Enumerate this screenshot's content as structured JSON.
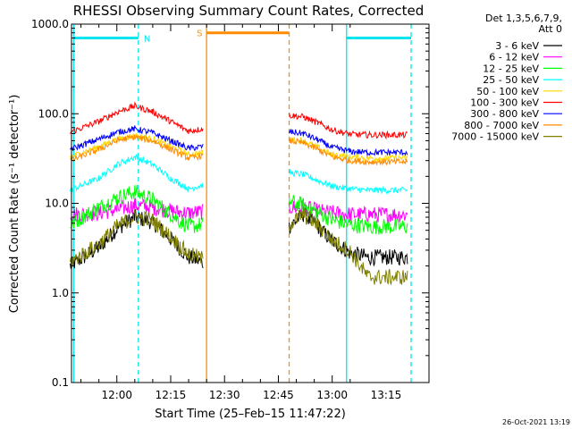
{
  "chart_data": {
    "type": "line",
    "title": "RHESSI Observing Summary Count Rates, Corrected",
    "ylabel": "Corrected Count Rate (s⁻¹ detector⁻¹)",
    "xlabel": "Start Time (25–Feb–15 11:47:22)",
    "x_start": "11:47:22",
    "xlim": [
      "11:47:22",
      "13:26:58"
    ],
    "ylim": [
      0.1,
      1000.0
    ],
    "yscale": "log",
    "x_ticks": [
      "12:00",
      "12:15",
      "12:30",
      "12:45",
      "13:00",
      "13:15"
    ],
    "y_ticks": [
      "0.1",
      "1.0",
      "10.0",
      "100.0",
      "1000.0"
    ],
    "legend_title": [
      "Det 1,3,5,6,7,9,",
      "Att 0"
    ],
    "legend_position": "right",
    "footer_date": "26-Oct-2021 13:19",
    "series": [
      {
        "name": "3 - 6 keV",
        "color": "#000000",
        "points": [
          [
            "11:47",
            2.0
          ],
          [
            "11:55",
            3.2
          ],
          [
            "12:00",
            5.2
          ],
          [
            "12:05",
            7.0
          ],
          [
            "12:10",
            6.2
          ],
          [
            "12:15",
            4.0
          ],
          [
            "12:20",
            2.5
          ],
          [
            "12:24",
            2.2
          ],
          [
            "12:48",
            5.5
          ],
          [
            "12:52",
            7.5
          ],
          [
            "12:56",
            5.5
          ],
          [
            "13:00",
            3.8
          ],
          [
            "13:05",
            2.8
          ],
          [
            "13:10",
            2.5
          ],
          [
            "13:15",
            2.5
          ],
          [
            "13:21",
            2.5
          ]
        ]
      },
      {
        "name": "6 - 12 keV",
        "color": "#ff00ff",
        "points": [
          [
            "11:47",
            7.5
          ],
          [
            "11:55",
            7.8
          ],
          [
            "12:00",
            8.5
          ],
          [
            "12:05",
            9.5
          ],
          [
            "12:10",
            9.0
          ],
          [
            "12:15",
            8.2
          ],
          [
            "12:20",
            7.8
          ],
          [
            "12:24",
            8.0
          ],
          [
            "12:48",
            9.0
          ],
          [
            "12:52",
            9.0
          ],
          [
            "12:56",
            8.2
          ],
          [
            "13:00",
            7.8
          ],
          [
            "13:05",
            7.5
          ],
          [
            "13:10",
            7.5
          ],
          [
            "13:15",
            7.5
          ],
          [
            "13:21",
            7.5
          ]
        ]
      },
      {
        "name": "12 - 25 keV",
        "color": "#00ff00",
        "points": [
          [
            "11:47",
            5.8
          ],
          [
            "11:55",
            9.0
          ],
          [
            "12:00",
            11.5
          ],
          [
            "12:05",
            13.5
          ],
          [
            "12:10",
            11.0
          ],
          [
            "12:15",
            7.5
          ],
          [
            "12:20",
            5.5
          ],
          [
            "12:24",
            5.8
          ],
          [
            "12:48",
            10.5
          ],
          [
            "12:52",
            9.5
          ],
          [
            "12:56",
            8.0
          ],
          [
            "13:00",
            6.5
          ],
          [
            "13:05",
            5.8
          ],
          [
            "13:10",
            5.5
          ],
          [
            "13:15",
            5.5
          ],
          [
            "13:21",
            5.5
          ]
        ]
      },
      {
        "name": "25 - 50 keV",
        "color": "#00ffff",
        "points": [
          [
            "11:47",
            14.0
          ],
          [
            "11:55",
            19.0
          ],
          [
            "12:00",
            27.0
          ],
          [
            "12:05",
            33.0
          ],
          [
            "12:10",
            27.0
          ],
          [
            "12:15",
            19.0
          ],
          [
            "12:20",
            14.5
          ],
          [
            "12:24",
            16.0
          ],
          [
            "12:48",
            22.0
          ],
          [
            "12:52",
            21.0
          ],
          [
            "12:56",
            18.0
          ],
          [
            "13:00",
            15.5
          ],
          [
            "13:05",
            14.5
          ],
          [
            "13:10",
            14.0
          ],
          [
            "13:15",
            14.0
          ],
          [
            "13:21",
            14.0
          ]
        ]
      },
      {
        "name": "50 - 100 keV",
        "color": "#ffd700",
        "points": [
          [
            "11:47",
            33.0
          ],
          [
            "11:55",
            43.0
          ],
          [
            "12:00",
            52.0
          ],
          [
            "12:05",
            57.0
          ],
          [
            "12:10",
            52.0
          ],
          [
            "12:15",
            43.0
          ],
          [
            "12:20",
            35.0
          ],
          [
            "12:24",
            37.0
          ],
          [
            "12:48",
            52.0
          ],
          [
            "12:52",
            50.0
          ],
          [
            "12:56",
            42.0
          ],
          [
            "13:00",
            35.0
          ],
          [
            "13:05",
            33.0
          ],
          [
            "13:10",
            32.0
          ],
          [
            "13:15",
            32.0
          ],
          [
            "13:21",
            32.0
          ]
        ]
      },
      {
        "name": "100 - 300 keV",
        "color": "#ff0000",
        "points": [
          [
            "11:47",
            62.0
          ],
          [
            "11:55",
            82.0
          ],
          [
            "12:00",
            104.0
          ],
          [
            "12:05",
            122.0
          ],
          [
            "12:10",
            105.0
          ],
          [
            "12:15",
            82.0
          ],
          [
            "12:20",
            64.0
          ],
          [
            "12:24",
            68.0
          ],
          [
            "12:48",
            96.0
          ],
          [
            "12:52",
            92.0
          ],
          [
            "12:56",
            79.0
          ],
          [
            "13:00",
            66.0
          ],
          [
            "13:05",
            59.0
          ],
          [
            "13:10",
            58.0
          ],
          [
            "13:15",
            58.0
          ],
          [
            "13:21",
            58.0
          ]
        ]
      },
      {
        "name": "300 - 800 keV",
        "color": "#0000ff",
        "points": [
          [
            "11:47",
            40.0
          ],
          [
            "11:55",
            52.0
          ],
          [
            "12:00",
            62.0
          ],
          [
            "12:05",
            68.0
          ],
          [
            "12:10",
            61.0
          ],
          [
            "12:15",
            50.0
          ],
          [
            "12:20",
            41.0
          ],
          [
            "12:24",
            43.0
          ],
          [
            "12:48",
            63.0
          ],
          [
            "12:52",
            60.0
          ],
          [
            "12:56",
            51.0
          ],
          [
            "13:00",
            42.0
          ],
          [
            "13:05",
            38.0
          ],
          [
            "13:10",
            37.0
          ],
          [
            "13:15",
            37.0
          ],
          [
            "13:21",
            37.0
          ]
        ]
      },
      {
        "name": "800 - 7000 keV",
        "color": "#ff8c00",
        "points": [
          [
            "11:47",
            30.0
          ],
          [
            "11:55",
            40.0
          ],
          [
            "12:00",
            50.0
          ],
          [
            "12:05",
            55.0
          ],
          [
            "12:10",
            50.0
          ],
          [
            "12:15",
            40.0
          ],
          [
            "12:20",
            32.0
          ],
          [
            "12:24",
            34.0
          ],
          [
            "12:48",
            50.0
          ],
          [
            "12:52",
            47.0
          ],
          [
            "12:56",
            40.0
          ],
          [
            "13:00",
            33.0
          ],
          [
            "13:05",
            30.0
          ],
          [
            "13:10",
            29.0
          ],
          [
            "13:15",
            29.0
          ],
          [
            "13:21",
            29.0
          ]
        ]
      },
      {
        "name": "7000 - 15000 keV",
        "color": "#808000",
        "points": [
          [
            "11:47",
            2.2
          ],
          [
            "11:55",
            3.5
          ],
          [
            "12:00",
            5.5
          ],
          [
            "12:05",
            7.2
          ],
          [
            "12:10",
            6.4
          ],
          [
            "12:15",
            4.2
          ],
          [
            "12:20",
            2.7
          ],
          [
            "12:24",
            2.4
          ],
          [
            "12:48",
            5.7
          ],
          [
            "12:52",
            7.7
          ],
          [
            "12:56",
            5.7
          ],
          [
            "13:00",
            3.9
          ],
          [
            "13:05",
            2.9
          ],
          [
            "13:10",
            1.5
          ],
          [
            "13:15",
            1.5
          ],
          [
            "13:21",
            1.5
          ]
        ]
      }
    ],
    "flags": [
      {
        "label": "N",
        "color": "#00e5ee",
        "level": 700,
        "start": "11:48",
        "end": "12:06"
      },
      {
        "label": "",
        "color": "#00e5ee",
        "level": 700,
        "start": "13:04",
        "end": "13:22"
      },
      {
        "label": "S",
        "color": "#ff8c00",
        "level": 800,
        "start": "12:25",
        "end": "12:48"
      }
    ],
    "vertical_lines": [
      {
        "time": "11:48",
        "color": "#00e5ee",
        "style": "solid"
      },
      {
        "time": "12:06",
        "color": "#00e5ee",
        "style": "dashed"
      },
      {
        "time": "12:25",
        "color": "#ff8c00",
        "style": "solid"
      },
      {
        "time": "12:48",
        "color": "#ff8c00",
        "style": "dashed"
      },
      {
        "time": "13:04",
        "color": "#00e5ee",
        "style": "solid"
      },
      {
        "time": "13:22",
        "color": "#00e5ee",
        "style": "dashed"
      }
    ]
  }
}
